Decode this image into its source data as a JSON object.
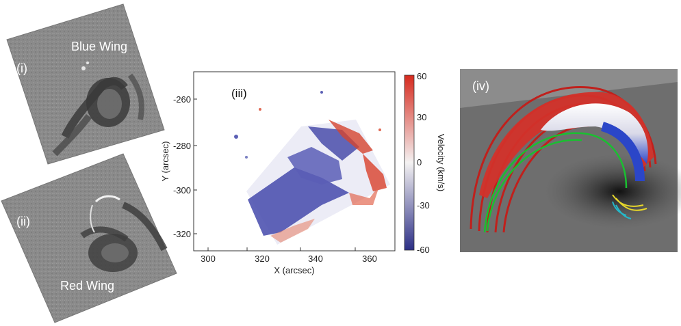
{
  "panels": {
    "i": {
      "label": "(i)",
      "caption": "Blue Wing"
    },
    "ii": {
      "label": "(ii)",
      "caption": "Red Wing"
    },
    "iii": {
      "label": "(iii)",
      "xlabel": "X (arcsec)",
      "ylabel": "Y (arcsec)",
      "x_ticks": [
        "300",
        "320",
        "340",
        "360"
      ],
      "y_ticks": [
        "-260",
        "-280",
        "-300",
        "-320"
      ],
      "colorbar": {
        "title": "Velocity (km/s)",
        "ticks": [
          "60",
          "30",
          "0",
          "-30",
          "-60"
        ],
        "range": [
          -60,
          60
        ],
        "colors": {
          "high": "#d62a1e",
          "mid": "#f4f2f2",
          "low": "#2c2f86"
        }
      }
    },
    "iv": {
      "label": "(iv)"
    }
  }
}
